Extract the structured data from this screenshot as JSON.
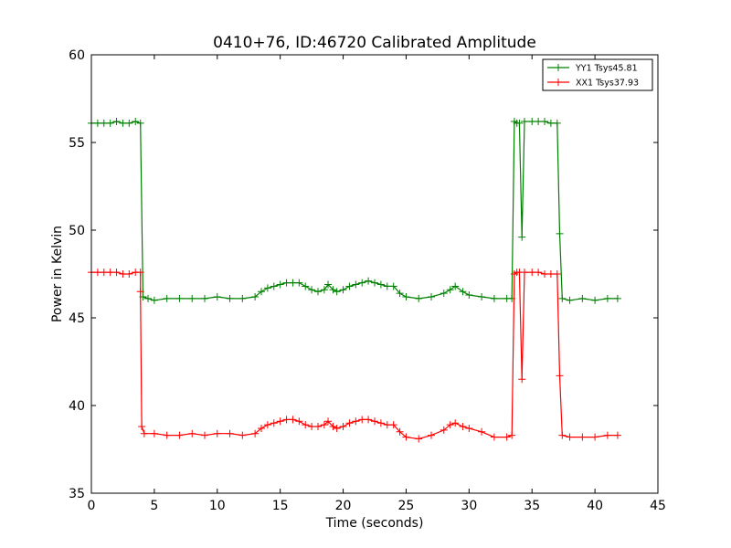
{
  "chart_data": {
    "type": "line",
    "title": "0410+76, ID:46720 Calibrated Amplitude",
    "xlabel": "Time (seconds)",
    "ylabel": "Power in Kelvin",
    "xlim": [
      0,
      45
    ],
    "ylim": [
      35,
      60
    ],
    "xticks": [
      0,
      5,
      10,
      15,
      20,
      25,
      30,
      35,
      40,
      45
    ],
    "yticks": [
      35,
      40,
      45,
      50,
      55,
      60
    ],
    "xtick_labels": [
      "0",
      "5",
      "10",
      "15",
      "20",
      "25",
      "30",
      "35",
      "40",
      "45"
    ],
    "ytick_labels": [
      "35",
      "40",
      "45",
      "50",
      "55",
      "60"
    ],
    "grid": false,
    "legend_position": "top-right",
    "marker": "plus",
    "series": [
      {
        "name": "YY1 Tsys45.81",
        "color": "#008000",
        "points": [
          [
            0.0,
            56.1
          ],
          [
            0.5,
            56.1
          ],
          [
            1.0,
            56.1
          ],
          [
            1.5,
            56.1
          ],
          [
            2.0,
            56.2
          ],
          [
            2.5,
            56.1
          ],
          [
            3.0,
            56.1
          ],
          [
            3.5,
            56.2
          ],
          [
            3.9,
            56.1
          ],
          [
            4.1,
            46.2
          ],
          [
            4.5,
            46.1
          ],
          [
            5.0,
            46.0
          ],
          [
            6.0,
            46.1
          ],
          [
            7.0,
            46.1
          ],
          [
            8.0,
            46.1
          ],
          [
            9.0,
            46.1
          ],
          [
            10.0,
            46.2
          ],
          [
            11.0,
            46.1
          ],
          [
            12.0,
            46.1
          ],
          [
            13.0,
            46.2
          ],
          [
            13.5,
            46.5
          ],
          [
            14.0,
            46.7
          ],
          [
            14.5,
            46.8
          ],
          [
            15.0,
            46.9
          ],
          [
            15.5,
            47.0
          ],
          [
            16.0,
            47.0
          ],
          [
            16.5,
            47.0
          ],
          [
            17.0,
            46.8
          ],
          [
            17.5,
            46.6
          ],
          [
            18.0,
            46.5
          ],
          [
            18.5,
            46.6
          ],
          [
            18.8,
            46.9
          ],
          [
            19.2,
            46.6
          ],
          [
            19.5,
            46.5
          ],
          [
            20.0,
            46.6
          ],
          [
            20.5,
            46.8
          ],
          [
            21.0,
            46.9
          ],
          [
            21.5,
            47.0
          ],
          [
            22.0,
            47.1
          ],
          [
            22.5,
            47.0
          ],
          [
            23.0,
            46.9
          ],
          [
            23.5,
            46.8
          ],
          [
            24.0,
            46.8
          ],
          [
            24.5,
            46.4
          ],
          [
            25.0,
            46.2
          ],
          [
            26.0,
            46.1
          ],
          [
            27.0,
            46.2
          ],
          [
            28.0,
            46.4
          ],
          [
            28.5,
            46.6
          ],
          [
            28.9,
            46.8
          ],
          [
            29.5,
            46.5
          ],
          [
            30.0,
            46.3
          ],
          [
            31.0,
            46.2
          ],
          [
            32.0,
            46.1
          ],
          [
            33.0,
            46.1
          ],
          [
            33.4,
            46.1
          ],
          [
            33.6,
            56.2
          ],
          [
            33.8,
            56.1
          ],
          [
            34.0,
            56.1
          ],
          [
            34.2,
            49.6
          ],
          [
            34.4,
            56.2
          ],
          [
            35.0,
            56.2
          ],
          [
            35.5,
            56.2
          ],
          [
            36.0,
            56.2
          ],
          [
            36.5,
            56.1
          ],
          [
            37.0,
            56.1
          ],
          [
            37.2,
            49.8
          ],
          [
            37.4,
            46.1
          ],
          [
            38.0,
            46.0
          ],
          [
            39.0,
            46.1
          ],
          [
            40.0,
            46.0
          ],
          [
            41.0,
            46.1
          ],
          [
            41.8,
            46.1
          ]
        ]
      },
      {
        "name": "XX1 Tsys37.93",
        "color": "#ff0000",
        "points": [
          [
            0.0,
            47.6
          ],
          [
            0.5,
            47.6
          ],
          [
            1.0,
            47.6
          ],
          [
            1.5,
            47.6
          ],
          [
            2.0,
            47.6
          ],
          [
            2.5,
            47.5
          ],
          [
            3.0,
            47.5
          ],
          [
            3.5,
            47.6
          ],
          [
            3.9,
            47.6
          ],
          [
            3.9,
            46.5
          ],
          [
            4.0,
            38.8
          ],
          [
            4.2,
            38.4
          ],
          [
            5.0,
            38.4
          ],
          [
            6.0,
            38.3
          ],
          [
            7.0,
            38.3
          ],
          [
            8.0,
            38.4
          ],
          [
            9.0,
            38.3
          ],
          [
            10.0,
            38.4
          ],
          [
            11.0,
            38.4
          ],
          [
            12.0,
            38.3
          ],
          [
            13.0,
            38.4
          ],
          [
            13.5,
            38.7
          ],
          [
            14.0,
            38.9
          ],
          [
            14.5,
            39.0
          ],
          [
            15.0,
            39.1
          ],
          [
            15.5,
            39.2
          ],
          [
            16.0,
            39.2
          ],
          [
            16.5,
            39.1
          ],
          [
            17.0,
            38.9
          ],
          [
            17.5,
            38.8
          ],
          [
            18.0,
            38.8
          ],
          [
            18.5,
            38.9
          ],
          [
            18.8,
            39.1
          ],
          [
            19.2,
            38.8
          ],
          [
            19.5,
            38.7
          ],
          [
            20.0,
            38.8
          ],
          [
            20.5,
            39.0
          ],
          [
            21.0,
            39.1
          ],
          [
            21.5,
            39.2
          ],
          [
            22.0,
            39.2
          ],
          [
            22.5,
            39.1
          ],
          [
            23.0,
            39.0
          ],
          [
            23.5,
            38.9
          ],
          [
            24.0,
            38.9
          ],
          [
            24.5,
            38.5
          ],
          [
            25.0,
            38.2
          ],
          [
            26.0,
            38.1
          ],
          [
            27.0,
            38.3
          ],
          [
            28.0,
            38.6
          ],
          [
            28.5,
            38.9
          ],
          [
            28.9,
            39.0
          ],
          [
            29.5,
            38.8
          ],
          [
            30.0,
            38.7
          ],
          [
            31.0,
            38.5
          ],
          [
            32.0,
            38.2
          ],
          [
            33.0,
            38.2
          ],
          [
            33.4,
            38.3
          ],
          [
            33.6,
            47.5
          ],
          [
            33.8,
            47.6
          ],
          [
            34.0,
            47.6
          ],
          [
            34.2,
            41.5
          ],
          [
            34.4,
            47.6
          ],
          [
            35.0,
            47.6
          ],
          [
            35.5,
            47.6
          ],
          [
            36.0,
            47.5
          ],
          [
            36.5,
            47.5
          ],
          [
            37.0,
            47.5
          ],
          [
            37.2,
            41.7
          ],
          [
            37.4,
            38.3
          ],
          [
            38.0,
            38.2
          ],
          [
            39.0,
            38.2
          ],
          [
            40.0,
            38.2
          ],
          [
            41.0,
            38.3
          ],
          [
            41.8,
            38.3
          ]
        ]
      }
    ]
  }
}
